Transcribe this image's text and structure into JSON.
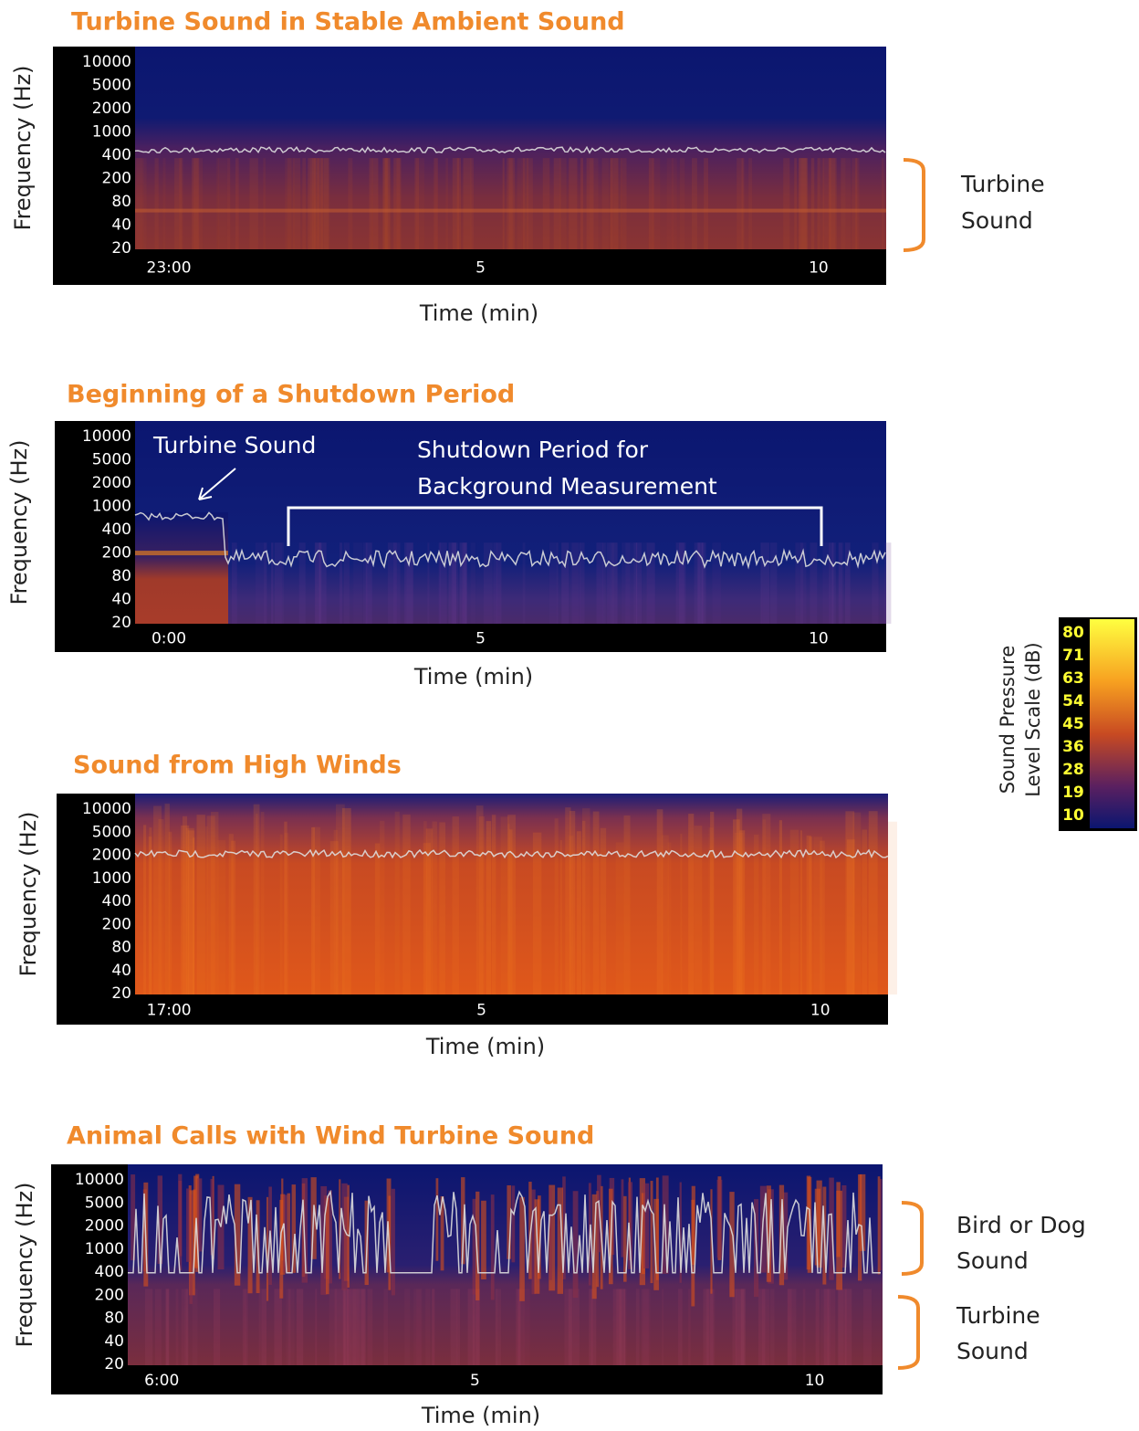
{
  "panels": [
    {
      "title": "Turbine Sound in Stable Ambient Sound",
      "y_label": "Frequency (Hz)",
      "y_ticks": [
        10000,
        5000,
        2000,
        1000,
        400,
        200,
        80,
        40,
        20
      ],
      "x_ticks": [
        "23:00",
        "5",
        "10"
      ],
      "x_label": "Time (min)",
      "annotations": [
        [
          "Turbine",
          "Sound"
        ]
      ]
    },
    {
      "title": "Beginning of a Shutdown Period",
      "y_label": "Frequency (Hz)",
      "y_ticks": [
        10000,
        5000,
        2000,
        1000,
        400,
        200,
        80,
        40,
        20
      ],
      "x_ticks": [
        "0:00",
        "5",
        "10"
      ],
      "x_label": "Time (min)",
      "annotations": [
        [
          "Turbine Sound"
        ],
        [
          "Shutdown Period for",
          "Background Measurement"
        ]
      ]
    },
    {
      "title": "Sound from High Winds",
      "y_label": "Frequency (Hz)",
      "y_ticks": [
        10000,
        5000,
        2000,
        1000,
        400,
        200,
        80,
        40,
        20
      ],
      "x_ticks": [
        "17:00",
        "5",
        "10"
      ],
      "x_label": "Time (min)",
      "annotations": []
    },
    {
      "title": "Animal Calls with Wind Turbine Sound",
      "y_label": "Frequency (Hz)",
      "y_ticks": [
        10000,
        5000,
        2000,
        1000,
        400,
        200,
        80,
        40,
        20
      ],
      "x_ticks": [
        "6:00",
        "5",
        "10"
      ],
      "x_label": "Time (min)",
      "annotations": [
        [
          "Bird or Dog",
          "Sound"
        ],
        [
          "Turbine",
          "Sound"
        ]
      ]
    }
  ],
  "colorbar": {
    "label": [
      "Sound Pressure",
      "Level Scale (dB)"
    ],
    "ticks": [
      80,
      71,
      63,
      54,
      45,
      36,
      28,
      19,
      10
    ]
  }
}
